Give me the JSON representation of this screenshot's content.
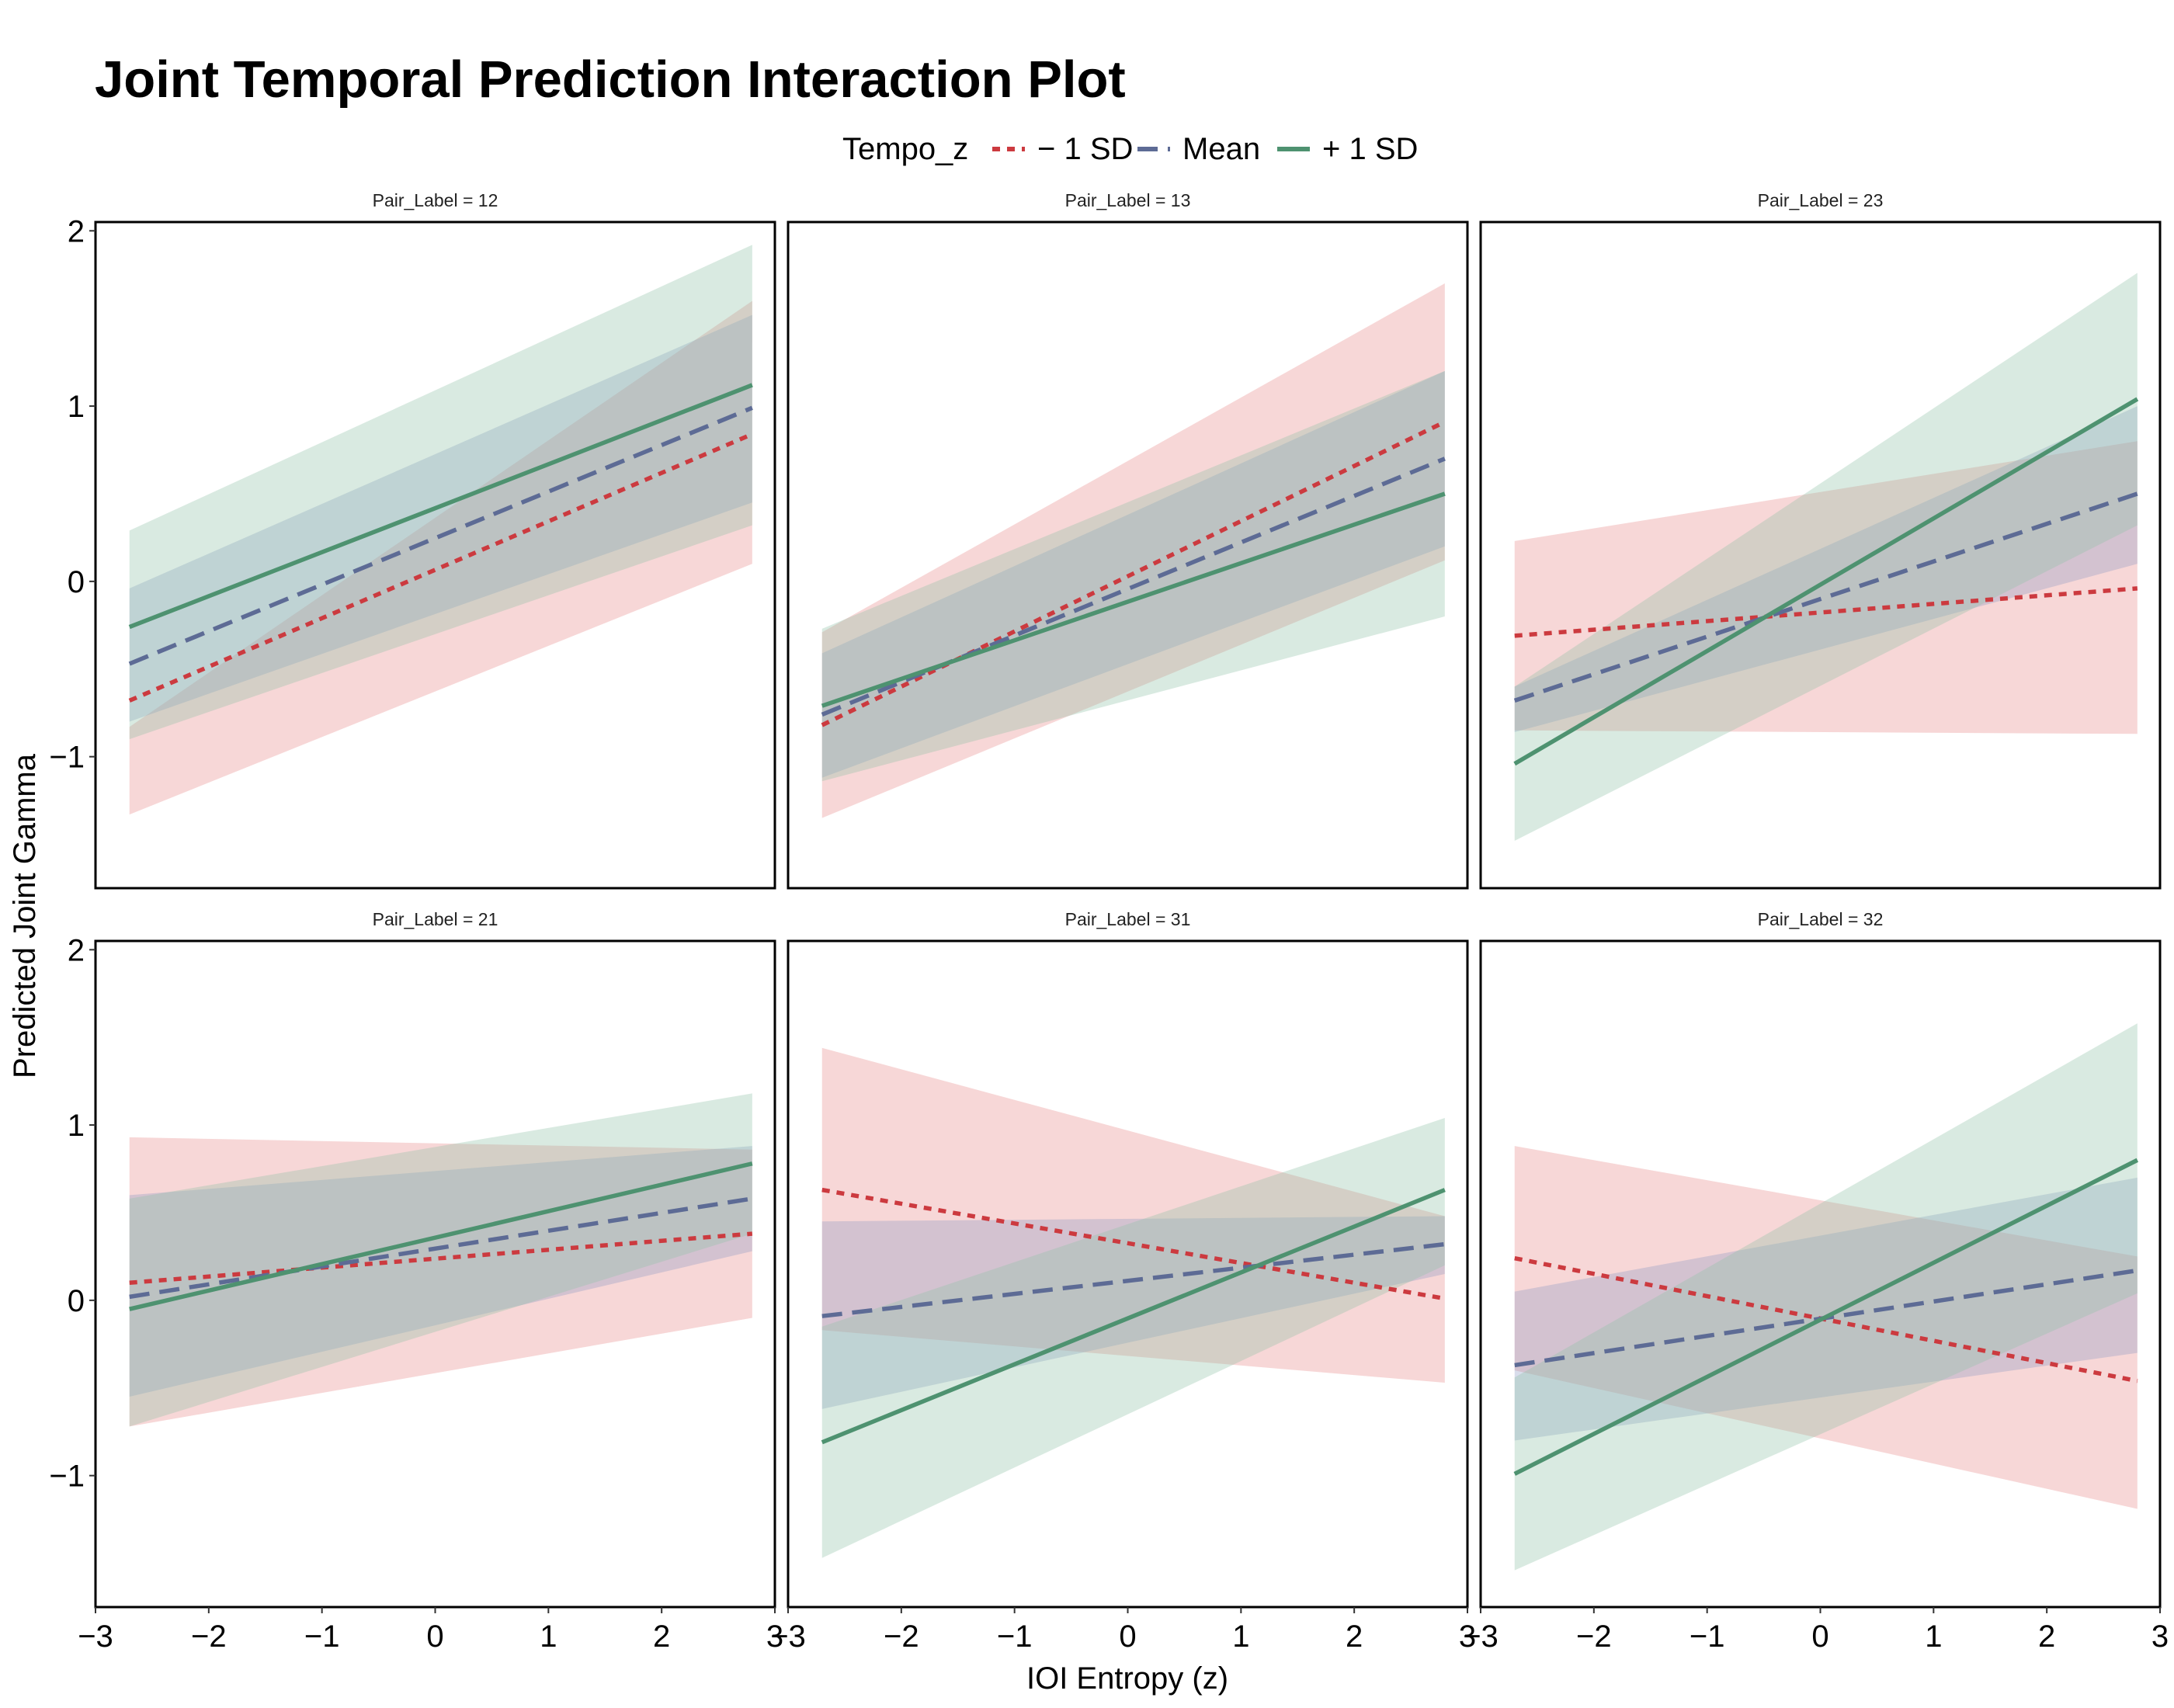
{
  "chart_data": {
    "type": "line",
    "title": "Joint Temporal Prediction Interaction Plot",
    "xlabel": "IOI Entropy (z)",
    "ylabel": "Predicted Joint Gamma",
    "xlim": [
      -3,
      3
    ],
    "ylim": [
      -1.75,
      2.05
    ],
    "xticks": [
      -3,
      -2,
      -1,
      0,
      1,
      2,
      3
    ],
    "xtick_labels": [
      "−3",
      "−2",
      "−1",
      "0",
      "1",
      "2",
      "3"
    ],
    "yticks": [
      -1,
      0,
      1,
      2
    ],
    "ytick_labels": [
      "−1",
      "0",
      "1",
      "2"
    ],
    "grid": false,
    "legend": {
      "title": "Tempo_z",
      "placement": "top",
      "entries": [
        {
          "label": "− 1 SD",
          "color": "#cc3a3f",
          "dash": "dotted"
        },
        {
          "label": "Mean",
          "color": "#5d6b95",
          "dash": "dashed"
        },
        {
          "label": "+ 1 SD",
          "color": "#4e9270",
          "dash": "solid"
        }
      ]
    },
    "facet_rows": 2,
    "facet_cols": 3,
    "panels": [
      {
        "label": "Pair_Label = 12",
        "series": [
          {
            "name": "− 1 SD",
            "color": "#cc3a3f",
            "fill": "#e8898a",
            "dash": "dotted",
            "x": [
              -2.7,
              2.8
            ],
            "y": [
              -0.68,
              0.84
            ],
            "lower": [
              -1.33,
              0.1
            ],
            "upper": [
              -0.83,
              1.6
            ]
          },
          {
            "name": "Mean",
            "color": "#5d6b95",
            "fill": "#8d9ac4",
            "dash": "dashed",
            "x": [
              -2.7,
              2.8
            ],
            "y": [
              -0.47,
              0.99
            ],
            "lower": [
              -0.8,
              0.45
            ],
            "upper": [
              -0.04,
              1.52
            ]
          },
          {
            "name": "+ 1 SD",
            "color": "#4e9270",
            "fill": "#8fc2a8",
            "dash": "solid",
            "x": [
              -2.7,
              2.8
            ],
            "y": [
              -0.26,
              1.12
            ],
            "lower": [
              -0.9,
              0.32
            ],
            "upper": [
              0.29,
              1.92
            ]
          }
        ]
      },
      {
        "label": "Pair_Label = 13",
        "series": [
          {
            "name": "− 1 SD",
            "color": "#cc3a3f",
            "fill": "#e8898a",
            "dash": "dotted",
            "x": [
              -2.7,
              2.8
            ],
            "y": [
              -0.82,
              0.91
            ],
            "lower": [
              -1.35,
              0.12
            ],
            "upper": [
              -0.29,
              1.7
            ]
          },
          {
            "name": "Mean",
            "color": "#5d6b95",
            "fill": "#8d9ac4",
            "dash": "dashed",
            "x": [
              -2.7,
              2.8
            ],
            "y": [
              -0.76,
              0.7
            ],
            "lower": [
              -1.12,
              0.2
            ],
            "upper": [
              -0.41,
              1.2
            ]
          },
          {
            "name": "+ 1 SD",
            "color": "#4e9270",
            "fill": "#8fc2a8",
            "dash": "solid",
            "x": [
              -2.7,
              2.8
            ],
            "y": [
              -0.71,
              0.5
            ],
            "lower": [
              -1.14,
              -0.2
            ],
            "upper": [
              -0.27,
              1.2
            ]
          }
        ]
      },
      {
        "label": "Pair_Label = 23",
        "series": [
          {
            "name": "− 1 SD",
            "color": "#cc3a3f",
            "fill": "#e8898a",
            "dash": "dotted",
            "x": [
              -2.7,
              2.8
            ],
            "y": [
              -0.31,
              -0.04
            ],
            "lower": [
              -0.85,
              -0.87
            ],
            "upper": [
              0.23,
              0.8
            ]
          },
          {
            "name": "Mean",
            "color": "#5d6b95",
            "fill": "#8d9ac4",
            "dash": "dashed",
            "x": [
              -2.7,
              2.8
            ],
            "y": [
              -0.68,
              0.5
            ],
            "lower": [
              -0.86,
              0.1
            ],
            "upper": [
              -0.6,
              1.0
            ]
          },
          {
            "name": "+ 1 SD",
            "color": "#4e9270",
            "fill": "#8fc2a8",
            "dash": "solid",
            "x": [
              -2.7,
              2.8
            ],
            "y": [
              -1.04,
              1.04
            ],
            "lower": [
              -1.48,
              0.32
            ],
            "upper": [
              -0.6,
              1.76
            ]
          }
        ]
      },
      {
        "label": "Pair_Label = 21",
        "series": [
          {
            "name": "− 1 SD",
            "color": "#cc3a3f",
            "fill": "#e8898a",
            "dash": "dotted",
            "x": [
              -2.7,
              2.8
            ],
            "y": [
              0.1,
              0.38
            ],
            "lower": [
              -0.72,
              -0.1
            ],
            "upper": [
              0.93,
              0.86
            ]
          },
          {
            "name": "Mean",
            "color": "#5d6b95",
            "fill": "#8d9ac4",
            "dash": "dashed",
            "x": [
              -2.7,
              2.8
            ],
            "y": [
              0.02,
              0.58
            ],
            "lower": [
              -0.55,
              0.28
            ],
            "upper": [
              0.6,
              0.88
            ]
          },
          {
            "name": "+ 1 SD",
            "color": "#4e9270",
            "fill": "#8fc2a8",
            "dash": "solid",
            "x": [
              -2.7,
              2.8
            ],
            "y": [
              -0.05,
              0.78
            ],
            "lower": [
              -0.72,
              0.38
            ],
            "upper": [
              0.58,
              1.18
            ]
          }
        ]
      },
      {
        "label": "Pair_Label = 31",
        "series": [
          {
            "name": "− 1 SD",
            "color": "#cc3a3f",
            "fill": "#e8898a",
            "dash": "dotted",
            "x": [
              -2.7,
              2.8
            ],
            "y": [
              0.63,
              0.01
            ],
            "lower": [
              -0.17,
              -0.47
            ],
            "upper": [
              1.44,
              0.48
            ]
          },
          {
            "name": "Mean",
            "color": "#5d6b95",
            "fill": "#8d9ac4",
            "dash": "dashed",
            "x": [
              -2.7,
              2.8
            ],
            "y": [
              -0.09,
              0.32
            ],
            "lower": [
              -0.62,
              0.15
            ],
            "upper": [
              0.45,
              0.48
            ]
          },
          {
            "name": "+ 1 SD",
            "color": "#4e9270",
            "fill": "#8fc2a8",
            "dash": "solid",
            "x": [
              -2.7,
              2.8
            ],
            "y": [
              -0.81,
              0.63
            ],
            "lower": [
              -1.47,
              0.2
            ],
            "upper": [
              -0.15,
              1.04
            ]
          }
        ]
      },
      {
        "label": "Pair_Label = 32",
        "series": [
          {
            "name": "− 1 SD",
            "color": "#cc3a3f",
            "fill": "#e8898a",
            "dash": "dotted",
            "x": [
              -2.7,
              2.8
            ],
            "y": [
              0.24,
              -0.46
            ],
            "lower": [
              -0.4,
              -1.19
            ],
            "upper": [
              0.88,
              0.25
            ]
          },
          {
            "name": "Mean",
            "color": "#5d6b95",
            "fill": "#8d9ac4",
            "dash": "dashed",
            "x": [
              -2.7,
              2.8
            ],
            "y": [
              -0.37,
              0.17
            ],
            "lower": [
              -0.8,
              -0.3
            ],
            "upper": [
              0.05,
              0.7
            ]
          },
          {
            "name": "+ 1 SD",
            "color": "#4e9270",
            "fill": "#8fc2a8",
            "dash": "solid",
            "x": [
              -2.7,
              2.8
            ],
            "y": [
              -0.99,
              0.8
            ],
            "lower": [
              -1.54,
              0.04
            ],
            "upper": [
              -0.44,
              1.58
            ]
          }
        ]
      }
    ]
  }
}
